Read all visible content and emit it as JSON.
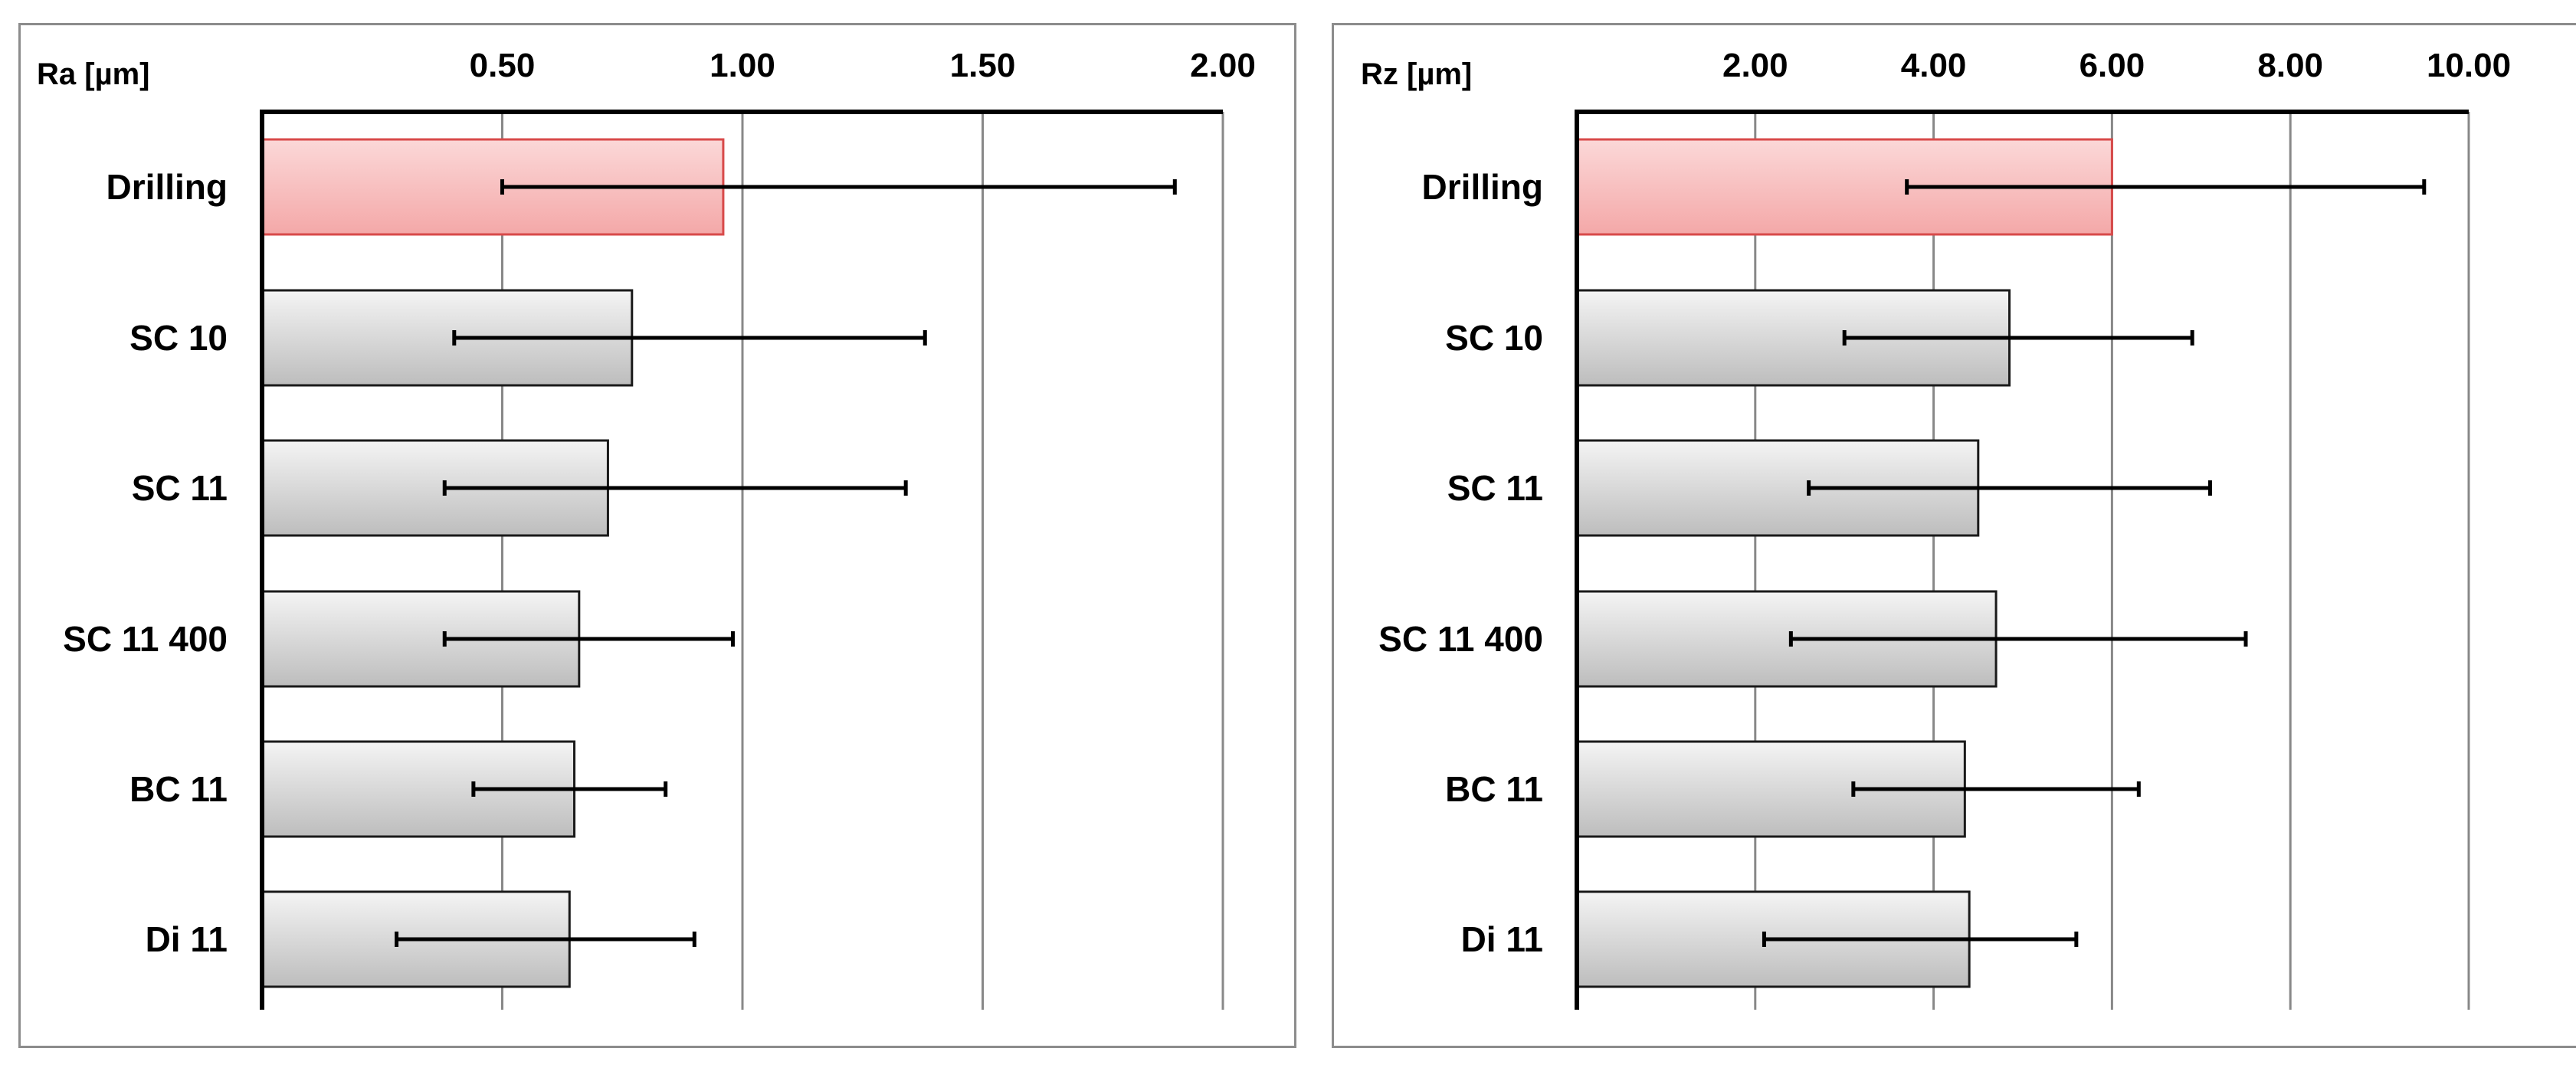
{
  "chart_data": [
    {
      "type": "bar",
      "orientation": "horizontal",
      "unit_label": "Ra [µm]",
      "categories": [
        "Drilling",
        "SC 10",
        "SC 11",
        "SC 11 400",
        "BC 11",
        "Di 11"
      ],
      "values": [
        0.96,
        0.77,
        0.72,
        0.66,
        0.65,
        0.64
      ],
      "error_low": [
        0.5,
        0.4,
        0.38,
        0.38,
        0.44,
        0.28
      ],
      "error_high": [
        1.9,
        1.38,
        1.34,
        0.98,
        0.84,
        0.9
      ],
      "xlim": [
        0,
        2.0
      ],
      "ticks": [
        "0.50",
        "1.00",
        "1.50",
        "2.00"
      ],
      "tick_values": [
        0.5,
        1.0,
        1.5,
        2.0
      ],
      "highlight_index": 0,
      "grid": true
    },
    {
      "type": "bar",
      "orientation": "horizontal",
      "unit_label": "Rz [µm]",
      "categories": [
        "Drilling",
        "SC 10",
        "SC 11",
        "SC 11 400",
        "BC 11",
        "Di 11"
      ],
      "values": [
        6.0,
        4.85,
        4.5,
        4.7,
        4.35,
        4.4
      ],
      "error_low": [
        3.7,
        3.0,
        2.6,
        2.4,
        3.1,
        2.1
      ],
      "error_high": [
        9.5,
        6.9,
        7.1,
        7.5,
        6.3,
        5.6
      ],
      "xlim": [
        0,
        10.0
      ],
      "ticks": [
        "2.00",
        "4.00",
        "6.00",
        "8.00",
        "10.00"
      ],
      "tick_values": [
        2,
        4,
        6,
        8,
        10
      ],
      "highlight_index": 0,
      "grid": true
    }
  ],
  "colors": {
    "highlight_bar_top": "#fbd8d8",
    "highlight_bar_bottom": "#f4a8a8",
    "highlight_border": "#d84a4a",
    "bar_top": "#f4f4f4",
    "bar_bottom": "#bdbdbd",
    "bar_border": "#1a1a1a",
    "grid": "#888888",
    "axis": "#000000"
  }
}
